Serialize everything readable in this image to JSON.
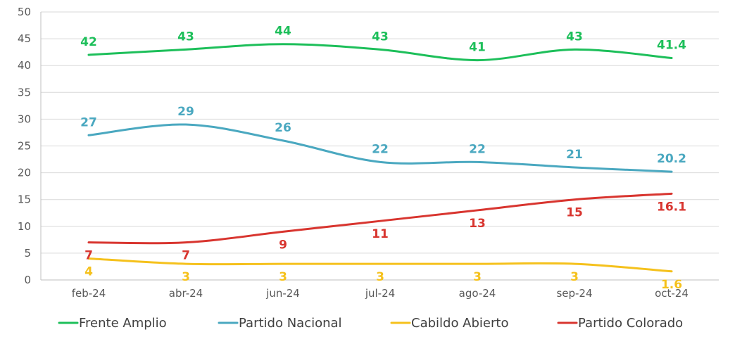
{
  "chart_data": {
    "type": "line",
    "categories": [
      "feb-24",
      "abr-24",
      "jun-24",
      "jul-24",
      "ago-24",
      "sep-24",
      "oct-24"
    ],
    "ylim": [
      0,
      50
    ],
    "yticks": [
      0,
      5,
      10,
      15,
      20,
      25,
      30,
      35,
      40,
      45,
      50
    ],
    "ytick_labels": [
      "0",
      "5",
      "10",
      "15",
      "20",
      "25",
      "30",
      "35",
      "40",
      "45",
      "50"
    ],
    "grid": true,
    "legend": "bottom",
    "series": [
      {
        "name": "Frente Amplio",
        "color": "#1dbf5a",
        "values": [
          42,
          43,
          44,
          43,
          41,
          43,
          41.4
        ],
        "labels": [
          "42",
          "43",
          "44",
          "43",
          "41",
          "43",
          "41.4"
        ],
        "label_position": "above"
      },
      {
        "name": "Partido Nacional",
        "color": "#4aa8c0",
        "values": [
          27,
          29,
          26,
          22,
          22,
          21,
          20.2
        ],
        "labels": [
          "27",
          "29",
          "26",
          "22",
          "22",
          "21",
          "20.2"
        ],
        "label_position": "above"
      },
      {
        "name": "Cabildo Abierto",
        "color": "#f5c11c",
        "values": [
          4,
          3,
          3,
          3,
          3,
          3,
          1.6
        ],
        "labels": [
          "4",
          "3",
          "3",
          "3",
          "3",
          "3",
          "1.6"
        ],
        "label_position": "below"
      },
      {
        "name": "Partido Colorado",
        "color": "#d8352f",
        "values": [
          7,
          7,
          9,
          11,
          13,
          15,
          16.1
        ],
        "labels": [
          "7",
          "7",
          "9",
          "11",
          "13",
          "15",
          "16.1"
        ],
        "label_position": "below"
      }
    ]
  }
}
